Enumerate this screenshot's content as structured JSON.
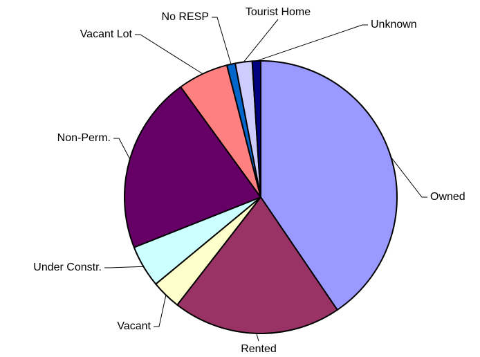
{
  "chart_data": {
    "type": "pie",
    "categories": [
      "Owned",
      "Rented",
      "Vacant",
      "Under Constr.",
      "Non-Perm.",
      "Vacant Lot",
      "No RESP",
      "Tourist Home",
      "Unknown"
    ],
    "values": [
      40.5,
      20,
      3.5,
      5,
      21,
      6,
      1,
      2,
      1
    ],
    "colors": [
      "#9999ff",
      "#993366",
      "#ffffcc",
      "#ccffff",
      "#660066",
      "#ff8080",
      "#0066cc",
      "#ccccff",
      "#000080"
    ],
    "start_angle": 0,
    "direction": "clockwise"
  }
}
